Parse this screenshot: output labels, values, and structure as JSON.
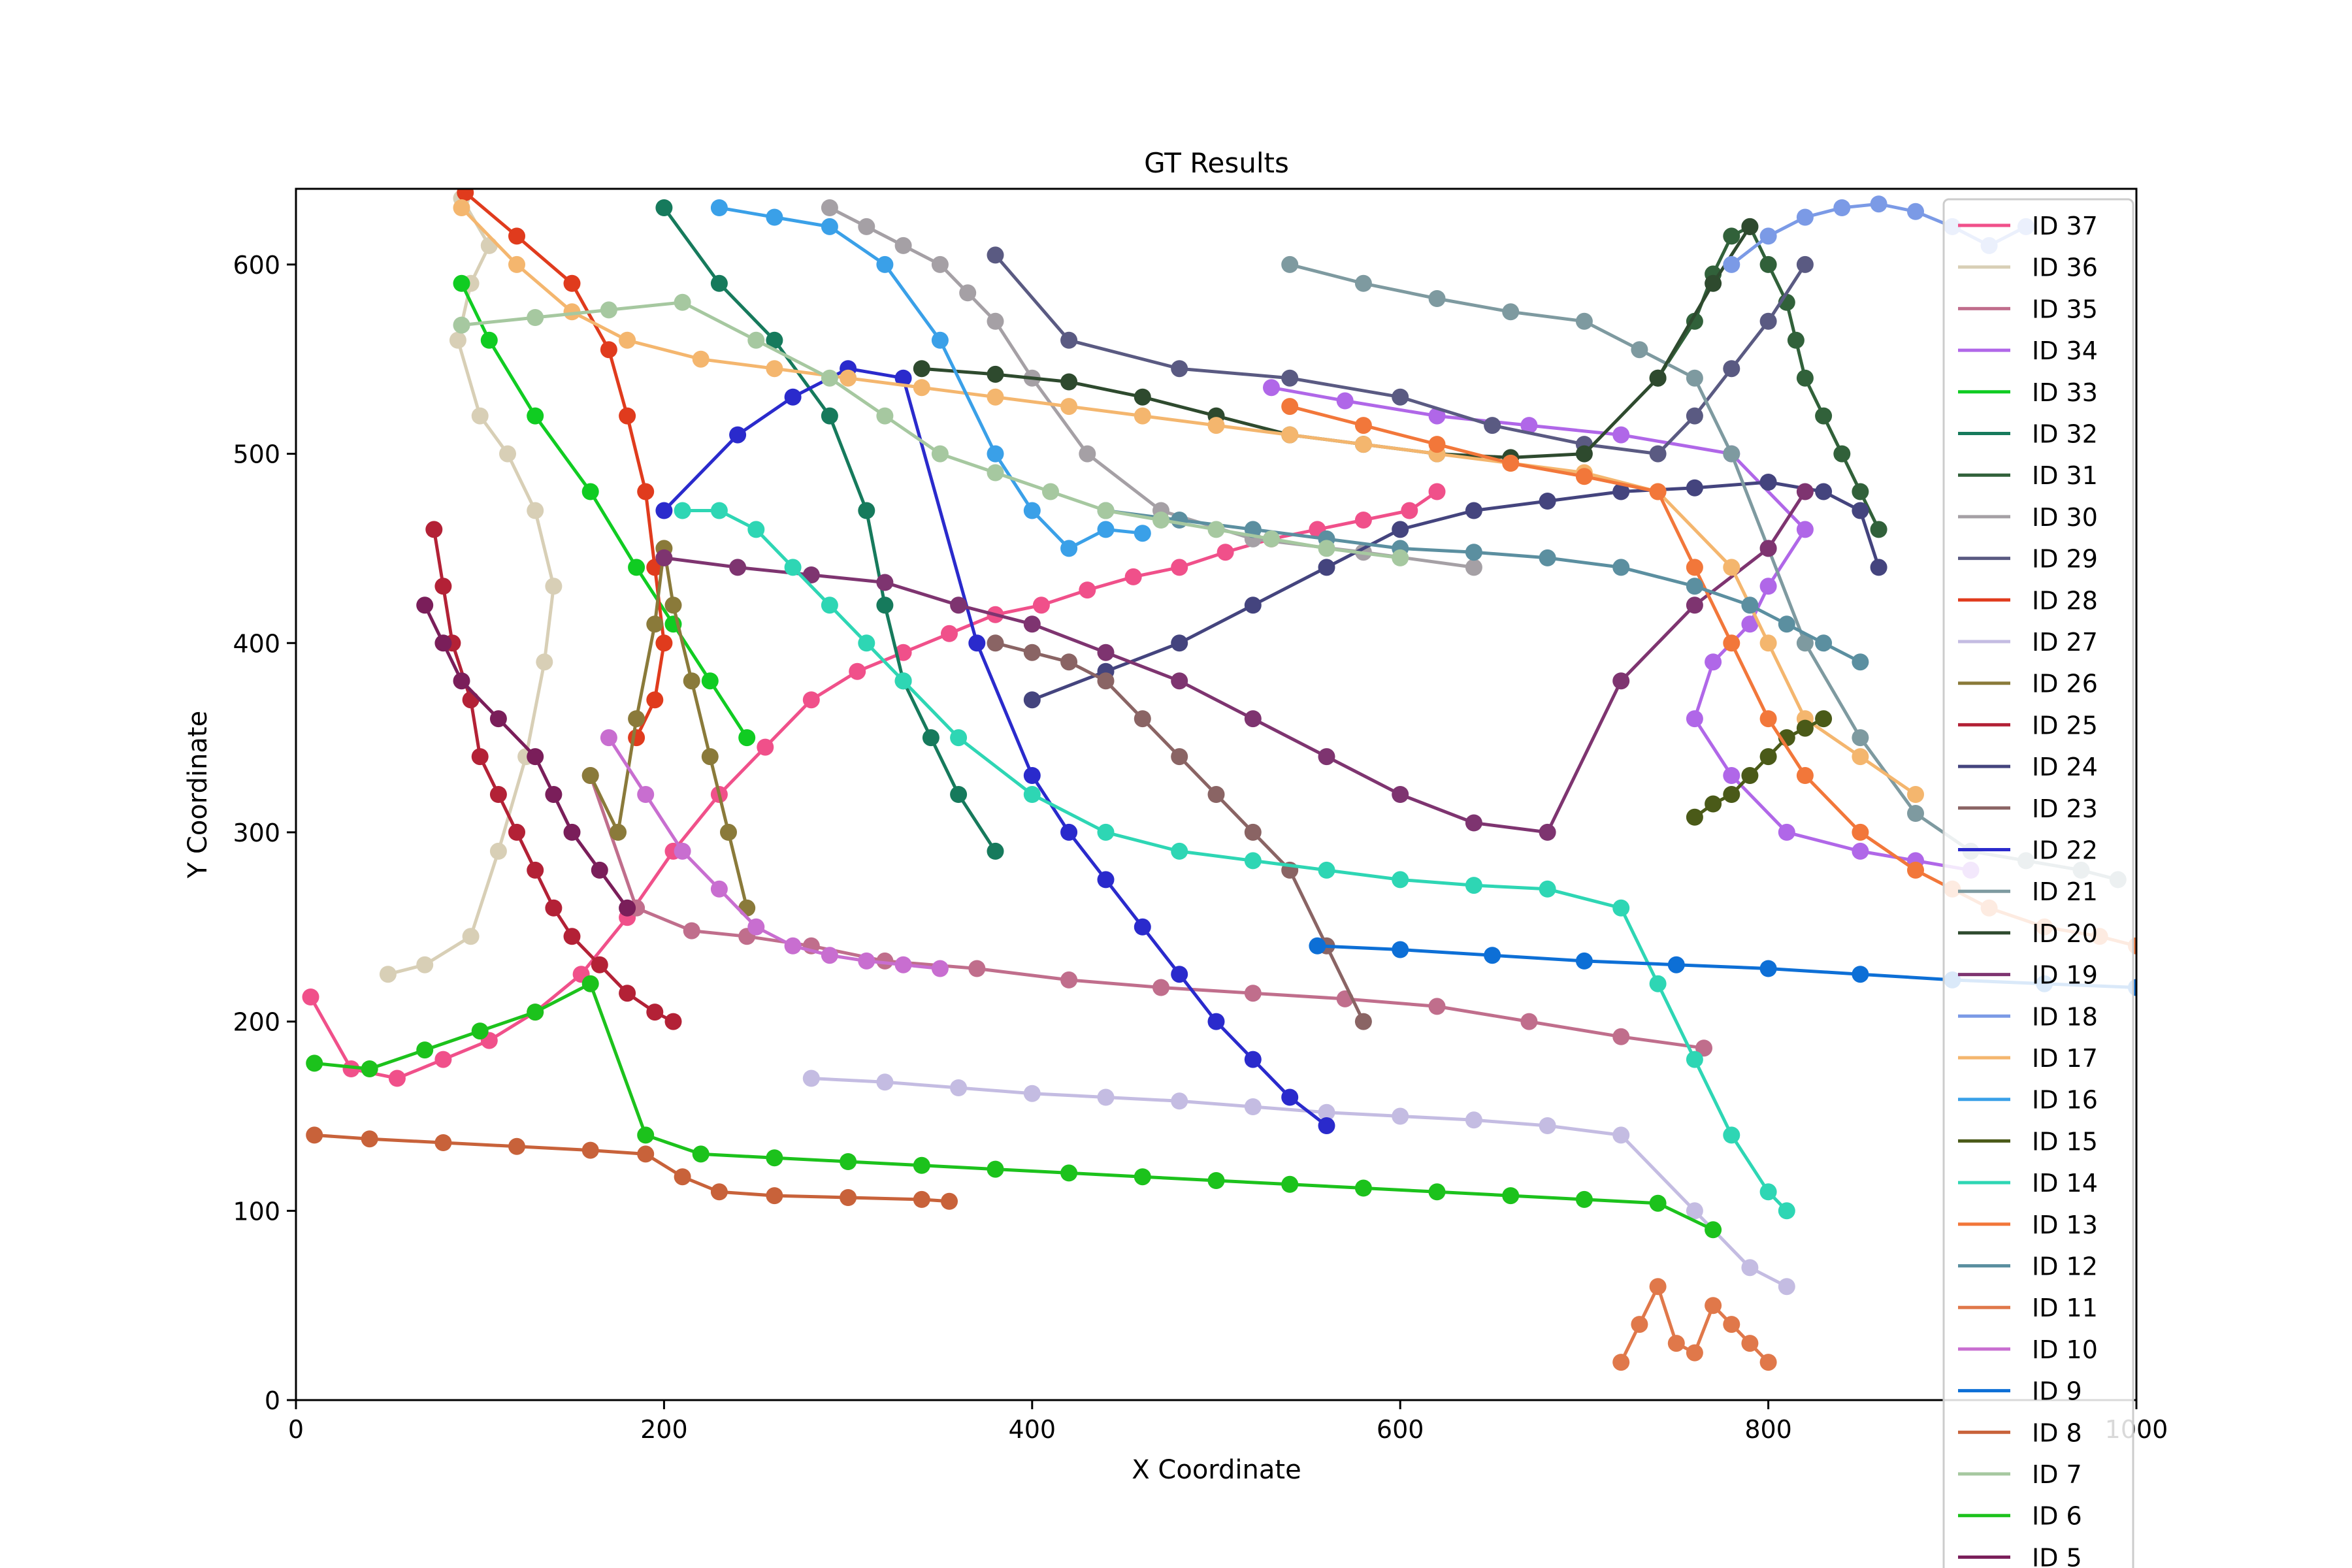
{
  "chart_data": {
    "type": "line",
    "title": "GT Results",
    "xlabel": "X Coordinate",
    "ylabel": "Y Coordinate",
    "xlim": [
      0,
      1000
    ],
    "ylim": [
      0,
      640
    ],
    "xticks": [
      "0",
      "200",
      "400",
      "600",
      "800",
      "1000"
    ],
    "yticks": [
      "0",
      "100",
      "200",
      "300",
      "400",
      "500",
      "600"
    ],
    "grid": false,
    "legend_position": "right, extending below the axes",
    "markers": "circle",
    "series": [
      {
        "name": "ID 37",
        "color": "#f0508a",
        "x": [
          8,
          30,
          55,
          80,
          105,
          130,
          155,
          180,
          205,
          230,
          255,
          280,
          305,
          330,
          355,
          380,
          405,
          430,
          455,
          480,
          505,
          530,
          555,
          580,
          605,
          620
        ],
        "y": [
          213,
          175,
          170,
          180,
          190,
          205,
          225,
          255,
          290,
          320,
          345,
          370,
          385,
          395,
          405,
          415,
          420,
          428,
          435,
          440,
          448,
          455,
          460,
          465,
          470,
          480
        ]
      },
      {
        "name": "ID 36",
        "color": "#d8cfb6",
        "x": [
          50,
          70,
          95,
          110,
          125,
          135,
          140,
          130,
          115,
          100,
          88,
          95,
          105,
          90
        ],
        "y": [
          225,
          230,
          245,
          290,
          340,
          390,
          430,
          470,
          500,
          520,
          560,
          590,
          610,
          635
        ]
      },
      {
        "name": "ID 35",
        "color": "#c06e8c",
        "x": [
          160,
          185,
          215,
          245,
          280,
          320,
          370,
          420,
          470,
          520,
          570,
          620,
          670,
          720,
          765
        ],
        "y": [
          330,
          260,
          248,
          245,
          240,
          232,
          228,
          222,
          218,
          215,
          212,
          208,
          200,
          192,
          186
        ]
      },
      {
        "name": "ID 34",
        "color": "#b067e8",
        "x": [
          530,
          570,
          620,
          670,
          720,
          780,
          820,
          800,
          790,
          770,
          760,
          780,
          810,
          850,
          880,
          910
        ],
        "y": [
          535,
          528,
          520,
          515,
          510,
          500,
          460,
          430,
          410,
          390,
          360,
          330,
          300,
          290,
          285,
          280
        ]
      },
      {
        "name": "ID 33",
        "color": "#10cc22",
        "x": [
          90,
          105,
          130,
          160,
          185,
          205,
          225,
          245
        ],
        "y": [
          590,
          560,
          520,
          480,
          440,
          410,
          380,
          350
        ]
      },
      {
        "name": "ID 32",
        "color": "#167a5c",
        "x": [
          200,
          230,
          260,
          290,
          310,
          320,
          330,
          345,
          360,
          380
        ],
        "y": [
          630,
          590,
          560,
          520,
          470,
          420,
          380,
          350,
          320,
          290
        ]
      },
      {
        "name": "ID 31",
        "color": "#31613a",
        "x": [
          740,
          760,
          770,
          780,
          790,
          800,
          810,
          815,
          820,
          830,
          840,
          850,
          860
        ],
        "y": [
          540,
          570,
          595,
          615,
          620,
          600,
          580,
          560,
          540,
          520,
          500,
          480,
          460
        ]
      },
      {
        "name": "ID 30",
        "color": "#a5a0a5",
        "x": [
          290,
          310,
          330,
          350,
          365,
          380,
          400,
          430,
          470,
          520,
          580,
          640
        ],
        "y": [
          630,
          620,
          610,
          600,
          585,
          570,
          540,
          500,
          470,
          455,
          448,
          440
        ]
      },
      {
        "name": "ID 29",
        "color": "#5a5a82",
        "x": [
          380,
          420,
          480,
          540,
          600,
          650,
          700,
          740,
          760,
          780,
          800,
          820
        ],
        "y": [
          605,
          560,
          545,
          540,
          530,
          515,
          505,
          500,
          520,
          545,
          570,
          600
        ]
      },
      {
        "name": "ID 28",
        "color": "#e03b1d",
        "x": [
          92,
          120,
          150,
          170,
          180,
          190,
          195,
          200,
          195,
          185
        ],
        "y": [
          638,
          615,
          590,
          555,
          520,
          480,
          440,
          400,
          370,
          350
        ]
      },
      {
        "name": "ID 27",
        "color": "#c4bce2",
        "x": [
          280,
          320,
          360,
          400,
          440,
          480,
          520,
          560,
          600,
          640,
          680,
          720,
          760,
          790,
          810
        ],
        "y": [
          170,
          168,
          165,
          162,
          160,
          158,
          155,
          152,
          150,
          148,
          145,
          140,
          100,
          70,
          60
        ]
      },
      {
        "name": "ID 26",
        "color": "#8a7a3a",
        "x": [
          160,
          175,
          185,
          195,
          200,
          205,
          215,
          225,
          235,
          245
        ],
        "y": [
          330,
          300,
          360,
          410,
          450,
          420,
          380,
          340,
          300,
          260
        ]
      },
      {
        "name": "ID 25",
        "color": "#b32136",
        "x": [
          75,
          80,
          85,
          95,
          100,
          110,
          120,
          130,
          140,
          150,
          165,
          180,
          195,
          205
        ],
        "y": [
          460,
          430,
          400,
          370,
          340,
          320,
          300,
          280,
          260,
          245,
          230,
          215,
          205,
          200
        ]
      },
      {
        "name": "ID 24",
        "color": "#44447e",
        "x": [
          860,
          850,
          830,
          800,
          760,
          720,
          680,
          640,
          600,
          560,
          520,
          480,
          440,
          400
        ],
        "y": [
          440,
          470,
          480,
          485,
          482,
          480,
          475,
          470,
          460,
          440,
          420,
          400,
          385,
          370
        ]
      },
      {
        "name": "ID 23",
        "color": "#8a6464",
        "x": [
          580,
          560,
          540,
          520,
          500,
          480,
          460,
          440,
          420,
          400,
          380
        ],
        "y": [
          200,
          240,
          280,
          300,
          320,
          340,
          360,
          380,
          390,
          395,
          400
        ]
      },
      {
        "name": "ID 22",
        "color": "#2a2acc",
        "x": [
          200,
          240,
          270,
          300,
          330,
          370,
          400,
          420,
          440,
          460,
          480,
          500,
          520,
          540,
          560
        ],
        "y": [
          470,
          510,
          530,
          545,
          540,
          400,
          330,
          300,
          275,
          250,
          225,
          200,
          180,
          160,
          145
        ]
      },
      {
        "name": "ID 21",
        "color": "#7e9aa0",
        "x": [
          540,
          580,
          620,
          660,
          700,
          730,
          760,
          780,
          800,
          820,
          850,
          880,
          910,
          940,
          970,
          990
        ],
        "y": [
          600,
          590,
          582,
          575,
          570,
          555,
          540,
          500,
          450,
          400,
          350,
          310,
          290,
          285,
          280,
          275
        ]
      },
      {
        "name": "ID 20",
        "color": "#2e4a2e",
        "x": [
          340,
          380,
          420,
          460,
          500,
          540,
          580,
          620,
          660,
          700,
          740,
          770,
          790
        ],
        "y": [
          545,
          542,
          538,
          530,
          520,
          510,
          505,
          500,
          498,
          500,
          540,
          590,
          620
        ]
      },
      {
        "name": "ID 19",
        "color": "#7e3470",
        "x": [
          200,
          240,
          280,
          320,
          360,
          400,
          440,
          480,
          520,
          560,
          600,
          640,
          680,
          720,
          760,
          800,
          820
        ],
        "y": [
          445,
          440,
          436,
          432,
          420,
          410,
          395,
          380,
          360,
          340,
          320,
          305,
          300,
          380,
          420,
          450,
          480
        ]
      },
      {
        "name": "ID 18",
        "color": "#7b9ae6",
        "x": [
          780,
          800,
          820,
          840,
          860,
          880,
          900,
          920,
          940
        ],
        "y": [
          600,
          615,
          625,
          630,
          632,
          628,
          620,
          610,
          620
        ]
      },
      {
        "name": "ID 17",
        "color": "#f4b66e",
        "x": [
          90,
          120,
          150,
          180,
          220,
          260,
          300,
          340,
          380,
          420,
          460,
          500,
          540,
          580,
          620,
          660,
          700,
          740,
          780,
          800,
          820,
          850,
          880
        ],
        "y": [
          630,
          600,
          575,
          560,
          550,
          545,
          540,
          535,
          530,
          525,
          520,
          515,
          510,
          505,
          500,
          495,
          490,
          480,
          440,
          400,
          360,
          340,
          320
        ]
      },
      {
        "name": "ID 16",
        "color": "#3aa0e8",
        "x": [
          230,
          260,
          290,
          320,
          350,
          380,
          400,
          420,
          440,
          460
        ],
        "y": [
          630,
          625,
          620,
          600,
          560,
          500,
          470,
          450,
          460,
          458
        ]
      },
      {
        "name": "ID 15",
        "color": "#4a5a18",
        "x": [
          760,
          770,
          780,
          790,
          800,
          810,
          820,
          830
        ],
        "y": [
          308,
          315,
          320,
          330,
          340,
          350,
          355,
          360
        ]
      },
      {
        "name": "ID 14",
        "color": "#2ed6b4",
        "x": [
          210,
          230,
          250,
          270,
          290,
          310,
          330,
          360,
          400,
          440,
          480,
          520,
          560,
          600,
          640,
          680,
          720,
          740,
          760,
          780,
          800,
          810
        ],
        "y": [
          470,
          470,
          460,
          440,
          420,
          400,
          380,
          350,
          320,
          300,
          290,
          285,
          280,
          275,
          272,
          270,
          260,
          220,
          180,
          140,
          110,
          100
        ]
      },
      {
        "name": "ID 13",
        "color": "#f2773a",
        "x": [
          540,
          580,
          620,
          660,
          700,
          740,
          760,
          780,
          800,
          820,
          850,
          880,
          900,
          920,
          950,
          980,
          1000
        ],
        "y": [
          525,
          515,
          505,
          495,
          488,
          480,
          440,
          400,
          360,
          330,
          300,
          280,
          270,
          260,
          250,
          245,
          240
        ]
      },
      {
        "name": "ID 12",
        "color": "#5b8fa0",
        "x": [
          440,
          480,
          520,
          560,
          600,
          640,
          680,
          720,
          760,
          790,
          810,
          830,
          850
        ],
        "y": [
          470,
          465,
          460,
          455,
          450,
          448,
          445,
          440,
          430,
          420,
          410,
          400,
          390
        ]
      },
      {
        "name": "ID 11",
        "color": "#e0784a",
        "x": [
          720,
          730,
          740,
          750,
          760,
          770,
          780,
          790,
          800
        ],
        "y": [
          20,
          40,
          60,
          30,
          25,
          50,
          40,
          30,
          20
        ]
      },
      {
        "name": "ID 10",
        "color": "#c86ed0",
        "x": [
          170,
          190,
          210,
          230,
          250,
          270,
          290,
          310,
          330,
          350
        ],
        "y": [
          350,
          320,
          290,
          270,
          250,
          240,
          235,
          232,
          230,
          228
        ]
      },
      {
        "name": "ID 9",
        "color": "#0d6fd6",
        "x": [
          555,
          600,
          650,
          700,
          750,
          800,
          850,
          900,
          950,
          1000
        ],
        "y": [
          240,
          238,
          235,
          232,
          230,
          228,
          225,
          222,
          220,
          218
        ]
      },
      {
        "name": "ID 8",
        "color": "#c8623a",
        "x": [
          10,
          40,
          80,
          120,
          160,
          190,
          210,
          230,
          260,
          300,
          340,
          355
        ],
        "y": [
          140,
          138,
          136,
          134,
          132,
          130,
          118,
          110,
          108,
          107,
          106,
          105
        ]
      },
      {
        "name": "ID 7",
        "color": "#a6c8a0",
        "x": [
          90,
          130,
          170,
          210,
          250,
          290,
          320,
          350,
          380,
          410,
          440,
          470,
          500,
          530,
          560,
          600
        ],
        "y": [
          568,
          572,
          576,
          580,
          560,
          540,
          520,
          500,
          490,
          480,
          470,
          465,
          460,
          455,
          450,
          445
        ]
      },
      {
        "name": "ID 6",
        "color": "#1cc21c",
        "x": [
          10,
          40,
          70,
          100,
          130,
          160,
          190,
          220,
          260,
          300,
          340,
          380,
          420,
          460,
          500,
          540,
          580,
          620,
          660,
          700,
          740,
          770
        ],
        "y": [
          178,
          175,
          185,
          195,
          205,
          220,
          140,
          130,
          128,
          126,
          124,
          122,
          120,
          118,
          116,
          114,
          112,
          110,
          108,
          106,
          104,
          90
        ]
      },
      {
        "name": "ID 5",
        "color": "#7a1e5a",
        "x": [
          70,
          80,
          90,
          110,
          130,
          140,
          150,
          165,
          180
        ],
        "y": [
          420,
          400,
          380,
          360,
          340,
          320,
          300,
          280,
          260
        ]
      }
    ]
  }
}
